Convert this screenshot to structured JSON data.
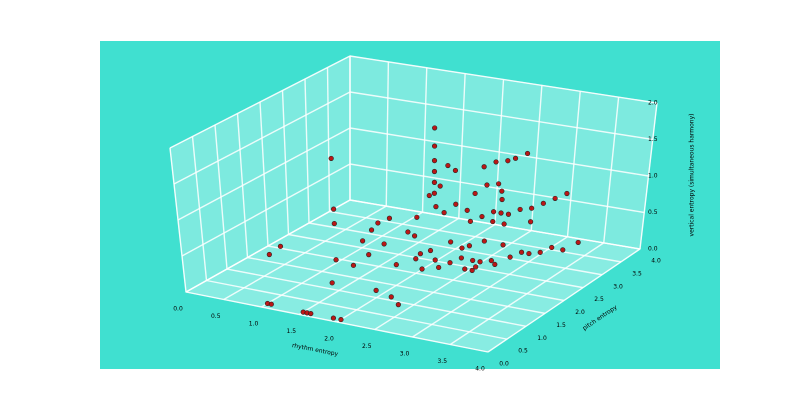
{
  "chart_data": {
    "type": "scatter3d",
    "xlabel": "rhythm entropy",
    "ylabel": "pitch entropy",
    "zlabel": "vertical entropy (simultaneous harmony)",
    "color": "#c00000",
    "grid": true,
    "xlim": [
      0,
      4
    ],
    "ylim": [
      0,
      4
    ],
    "zlim": [
      0,
      2
    ],
    "xticks": [
      {
        "value": 0,
        "label": "0.0"
      },
      0.5,
      {
        "value": 1,
        "label": "1.0"
      },
      1.5,
      {
        "value": 2,
        "label": "2.0"
      },
      2.5,
      {
        "value": 3,
        "label": "3.0"
      },
      3.5,
      {
        "value": 4,
        "label": "4.0"
      }
    ],
    "yticks": [
      {
        "value": 0,
        "label": "0.0"
      },
      0.5,
      {
        "value": 1,
        "label": "1.0"
      },
      1.5,
      {
        "value": 2,
        "label": "2.0"
      },
      2.5,
      {
        "value": 3,
        "label": "3.0"
      },
      3.5,
      {
        "value": 4,
        "label": "4.0"
      }
    ],
    "zticks": [
      {
        "value": 0,
        "label": "0.0"
      },
      0.5,
      {
        "value": 1,
        "label": "1.0"
      },
      1.5,
      {
        "value": 2,
        "label": "2.0"
      }
    ],
    "x": [
      1.0,
      1.05,
      1.5,
      1.55,
      1.6,
      1.9,
      2.0,
      1.2,
      1.2,
      1.2,
      1.2,
      1.3,
      0.3,
      0.4,
      1.6,
      1.7,
      1.4,
      2.0,
      2.2,
      2.4,
      1.8,
      1.9,
      2.1,
      2.2,
      1.9,
      2.3,
      1.94,
      1.94,
      1.94,
      1.94,
      1.94,
      1.94,
      2.0,
      2.0,
      2.1,
      2.2,
      1.8,
      2.3,
      2.4,
      2.5,
      2.6,
      2.7,
      2.4,
      2.5,
      2.3,
      2.6,
      2.5,
      2.6,
      2.7,
      2.4,
      2.3,
      2.2,
      2.8,
      2.9,
      3.0,
      3.1,
      3.2,
      2.5,
      2.6,
      2.7,
      3.0,
      2.1,
      2.0,
      2.5,
      2.6,
      2.7,
      2.8,
      2.4,
      2.3,
      2.5,
      2.6,
      2.9,
      3.0,
      3.1,
      3.2,
      3.3,
      3.4,
      2.2,
      2.1,
      2.0,
      2.7,
      2.4,
      2.8,
      1.9,
      2.2,
      3.5,
      2.6,
      2.3,
      1.5,
      1.6,
      1.3,
      1.8
    ],
    "y": [
      0.15,
      0.15,
      0.1,
      0.1,
      0.1,
      0.1,
      0.1,
      1.5,
      1.5,
      1.5,
      1.5,
      1.2,
      1.5,
      1.6,
      1.2,
      1.4,
      1.8,
      1.0,
      1.0,
      0.8,
      1.6,
      2.0,
      1.8,
      2.0,
      1.7,
      1.6,
      2.57,
      2.57,
      2.57,
      2.57,
      2.57,
      2.57,
      2.6,
      2.5,
      2.6,
      2.6,
      2.7,
      3.1,
      3.2,
      3.3,
      3.3,
      3.4,
      3.0,
      3.1,
      2.9,
      3.0,
      3.0,
      3.0,
      3.0,
      2.9,
      2.8,
      2.9,
      3.1,
      3.2,
      3.3,
      3.4,
      3.5,
      3.2,
      2.8,
      2.9,
      3.0,
      2.8,
      2.7,
      2.5,
      2.5,
      2.6,
      2.5,
      2.4,
      2.3,
      2.3,
      2.3,
      2.7,
      2.8,
      2.8,
      2.9,
      3.0,
      3.1,
      2.2,
      2.3,
      2.0,
      2.2,
      2.6,
      2.7,
      2.3,
      2.5,
      3.3,
      2.6,
      2.6,
      2.0,
      2.1,
      2.2,
      2.4
    ],
    "z": [
      0,
      0,
      0,
      0,
      0,
      0,
      0,
      1.6,
      0.9,
      0.7,
      0.2,
      0,
      0.1,
      0.2,
      0.3,
      0.4,
      0.4,
      0.1,
      0.05,
      0.05,
      0.5,
      0.55,
      0.6,
      0.35,
      0.2,
      0.25,
      1.8,
      1.55,
      1.35,
      1.2,
      1.05,
      0.9,
      1.0,
      0.75,
      1.3,
      1.25,
      0.8,
      1.15,
      1.2,
      1.2,
      1.25,
      1.3,
      0.95,
      0.95,
      0.85,
      0.9,
      0.6,
      0.6,
      0.6,
      0.55,
      0.5,
      0.6,
      0.65,
      0.65,
      0.7,
      0.75,
      0.8,
      0.7,
      0.55,
      0.5,
      0.55,
      0.7,
      0.6,
      0.1,
      0.1,
      0.1,
      0.1,
      0.15,
      0.1,
      0.05,
      0.05,
      0.15,
      0.2,
      0.2,
      0.2,
      0.25,
      0.2,
      0.05,
      0.1,
      0.2,
      0.15,
      0.25,
      0.3,
      0.15,
      0.3,
      0.25,
      0.35,
      0.2,
      0.6,
      0.65,
      0.4,
      0.6
    ]
  }
}
